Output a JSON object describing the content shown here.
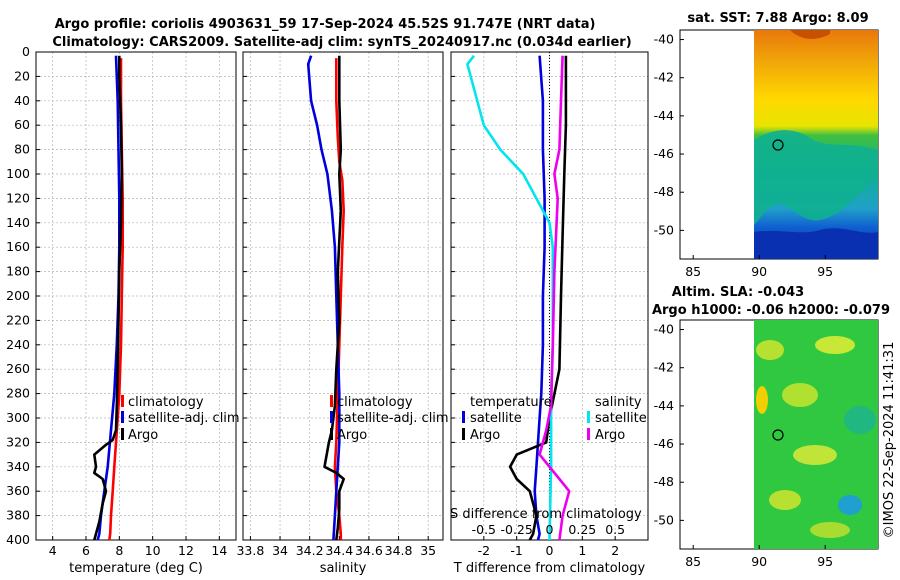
{
  "title_line1": "Argo profile: coriolis 4903631_59 17-Sep-2024 45.52S 91.747E (NRT data)",
  "title_line2": "Climatology: CARS2009. Satellite-adj clim: synTS_20240917.nc (0.034d earlier)",
  "credit": "©IMOS 22-Sep-2024 11:41:31",
  "colors": {
    "climatology": "#ff0000",
    "satellite": "#0000dd",
    "argo": "#000000",
    "cyan": "#00e5ee",
    "magenta": "#ee00ee",
    "grid": "#b4b4b4"
  },
  "chart_data": [
    {
      "type": "line",
      "name": "temperature",
      "xlabel": "temperature (deg C)",
      "ylabel": "",
      "xlim": [
        3,
        15
      ],
      "ylim": [
        400,
        0
      ],
      "xticks": [
        4,
        6,
        8,
        10,
        12,
        14
      ],
      "xtick_labels": [
        "4",
        "6",
        "8",
        "10",
        "12",
        "14"
      ],
      "yticks": [
        0,
        20,
        40,
        60,
        80,
        100,
        120,
        140,
        160,
        180,
        200,
        220,
        240,
        260,
        280,
        300,
        320,
        340,
        360,
        380,
        400
      ],
      "ytick_labels": [
        "0",
        "20",
        "40",
        "60",
        "80",
        "100",
        "120",
        "140",
        "160",
        "180",
        "200",
        "220",
        "240",
        "260",
        "280",
        "300",
        "320",
        "340",
        "360",
        "380",
        "400"
      ],
      "legend": [
        "climatology",
        "satellite-adj. clim",
        "Argo"
      ],
      "series": [
        {
          "name": "climatology",
          "color": "#ff0000",
          "x": [
            8.1,
            8.1,
            8.15,
            8.2,
            8.2,
            8.15,
            8.1,
            8.0,
            7.9,
            7.8,
            7.7,
            7.6,
            7.5,
            7.45,
            7.4
          ],
          "y": [
            5,
            40,
            80,
            120,
            160,
            200,
            240,
            280,
            300,
            320,
            340,
            360,
            380,
            395,
            400
          ]
        },
        {
          "name": "satellite-adj. clim",
          "color": "#0000dd",
          "x": [
            7.8,
            7.9,
            7.95,
            8.0,
            8.0,
            7.95,
            7.85,
            7.7,
            7.5,
            7.3,
            7.1,
            6.9,
            6.8,
            6.7
          ],
          "y": [
            3,
            40,
            80,
            120,
            160,
            200,
            240,
            280,
            310,
            340,
            360,
            380,
            395,
            400
          ]
        },
        {
          "name": "Argo",
          "color": "#000000",
          "x": [
            8.0,
            8.0,
            8.1,
            8.15,
            8.1,
            8.0,
            7.95,
            7.9,
            7.85,
            7.8,
            7.6,
            7.2,
            6.5,
            6.6,
            6.5,
            7.0,
            7.2,
            7.0,
            6.8,
            6.6,
            6.5
          ],
          "y": [
            3,
            20,
            60,
            100,
            140,
            180,
            220,
            260,
            290,
            310,
            318,
            322,
            330,
            340,
            345,
            350,
            360,
            370,
            385,
            395,
            400
          ]
        }
      ]
    },
    {
      "type": "line",
      "name": "salinity",
      "xlabel": "salinity",
      "ylabel": "",
      "xlim": [
        33.75,
        35.1
      ],
      "ylim": [
        400,
        0
      ],
      "xticks": [
        33.8,
        34.0,
        34.2,
        34.4,
        34.6,
        34.8,
        35.0
      ],
      "xtick_labels": [
        "33.8",
        "34",
        "34.2",
        "34.4",
        "34.6",
        "34.8",
        "35"
      ],
      "legend": [
        "climatology",
        "satellite-adj. clim",
        "Argo"
      ],
      "series": [
        {
          "name": "climatology",
          "color": "#ff0000",
          "x": [
            34.38,
            34.38,
            34.39,
            34.4,
            34.42,
            34.43,
            34.42,
            34.41,
            34.4,
            34.39,
            34.38,
            34.37,
            34.38,
            34.4,
            34.41,
            34.41
          ],
          "y": [
            5,
            40,
            70,
            90,
            105,
            130,
            160,
            200,
            240,
            280,
            320,
            340,
            360,
            380,
            395,
            400
          ]
        },
        {
          "name": "satellite-adj. clim",
          "color": "#0000dd",
          "x": [
            34.21,
            34.19,
            34.21,
            34.25,
            34.28,
            34.32,
            34.35,
            34.37,
            34.38,
            34.39,
            34.4,
            34.4,
            34.39,
            34.38,
            34.37,
            34.36
          ],
          "y": [
            3,
            10,
            40,
            60,
            80,
            100,
            130,
            160,
            200,
            240,
            280,
            320,
            340,
            360,
            380,
            400
          ]
        },
        {
          "name": "Argo",
          "color": "#000000",
          "x": [
            34.4,
            34.4,
            34.41,
            34.4,
            34.41,
            34.39,
            34.4,
            34.38,
            34.37,
            34.36,
            34.35,
            34.33,
            34.3,
            34.38,
            34.43,
            34.4,
            34.4,
            34.39,
            34.38
          ],
          "y": [
            3,
            40,
            80,
            100,
            130,
            180,
            220,
            260,
            290,
            300,
            310,
            320,
            340,
            345,
            350,
            360,
            375,
            390,
            400
          ]
        }
      ]
    },
    {
      "type": "line",
      "name": "difference",
      "xlabel": "T difference from climatology",
      "xlabel_top": "S difference from climatology",
      "xlim": [
        -3,
        3
      ],
      "ylim": [
        400,
        0
      ],
      "xticks": [
        -2,
        -1,
        0,
        1,
        2
      ],
      "xtick_labels": [
        "-2",
        "-1",
        "0",
        "1",
        "2"
      ],
      "xticks_top": [
        -0.5,
        -0.25,
        0,
        0.25,
        0.5
      ],
      "xtick_labels_top": [
        "-0.5",
        "-0.25",
        "0",
        "0.25",
        "0.5"
      ],
      "legend_left_title": "temperature",
      "legend_right_title": "salinity",
      "legend": [
        "satellite",
        "Argo",
        "satellite",
        "Argo"
      ],
      "series": [
        {
          "name": "temperature satellite",
          "color": "#0000dd",
          "x": [
            -0.3,
            -0.2,
            -0.2,
            -0.15,
            -0.15,
            -0.2,
            -0.2,
            -0.25,
            -0.3,
            -0.35,
            -0.4,
            -0.45,
            -0.4,
            -0.3,
            -0.35
          ],
          "y": [
            3,
            40,
            80,
            120,
            160,
            200,
            240,
            280,
            300,
            320,
            340,
            360,
            380,
            395,
            400
          ]
        },
        {
          "name": "temperature Argo",
          "color": "#000000",
          "x": [
            0.5,
            0.5,
            0.45,
            0.4,
            0.35,
            0.3,
            0.0,
            -0.1,
            -1.0,
            -1.2,
            -1.0,
            -0.6,
            -0.4,
            -0.5,
            -0.6
          ],
          "y": [
            3,
            60,
            100,
            150,
            200,
            260,
            300,
            320,
            330,
            340,
            350,
            360,
            380,
            395,
            400
          ]
        },
        {
          "name": "salinity satellite",
          "color": "#00e5ee",
          "x": [
            -2.3,
            -2.5,
            -2.0,
            -1.5,
            -0.8,
            0.0,
            0.1,
            0.1,
            0.1,
            0.05,
            0.05,
            0.0
          ],
          "y": [
            3,
            10,
            60,
            80,
            100,
            140,
            160,
            200,
            240,
            280,
            340,
            400
          ]
        },
        {
          "name": "salinity Argo",
          "color": "#ee00ee",
          "x": [
            0.4,
            0.35,
            0.3,
            0.15,
            0.25,
            0.15,
            0.1,
            0.05,
            -0.1,
            -0.3,
            0.3,
            0.6,
            0.4,
            0.3
          ],
          "y": [
            3,
            40,
            80,
            100,
            120,
            180,
            240,
            290,
            310,
            330,
            350,
            360,
            380,
            400
          ]
        }
      ]
    },
    {
      "type": "heatmap",
      "name": "sst_map",
      "title": "sat. SST: 7.88 Argo: 8.09",
      "xlim": [
        84,
        99
      ],
      "ylim": [
        -51.5,
        -39.5
      ],
      "xticks": [
        85,
        90,
        95
      ],
      "xtick_labels": [
        "85",
        "90",
        "95"
      ],
      "yticks": [
        -40,
        -42,
        -44,
        -46,
        -48,
        -50
      ],
      "ytick_labels": [
        "-40",
        "-42",
        "-44",
        "-46",
        "-48",
        "-50"
      ],
      "marker": {
        "lon": 91.747,
        "lat": -45.52
      }
    },
    {
      "type": "heatmap",
      "name": "sla_map",
      "title": "Altim. SLA: -0.043",
      "subtitle": "Argo h1000: -0.06 h2000: -0.079",
      "xlim": [
        84,
        99
      ],
      "ylim": [
        -51.5,
        -39.5
      ],
      "xticks": [
        85,
        90,
        95
      ],
      "xtick_labels": [
        "85",
        "90",
        "95"
      ],
      "yticks": [
        -40,
        -42,
        -44,
        -46,
        -48,
        -50
      ],
      "ytick_labels": [
        "-40",
        "-42",
        "-44",
        "-46",
        "-48",
        "-50"
      ],
      "marker": {
        "lon": 91.747,
        "lat": -45.52
      }
    }
  ]
}
